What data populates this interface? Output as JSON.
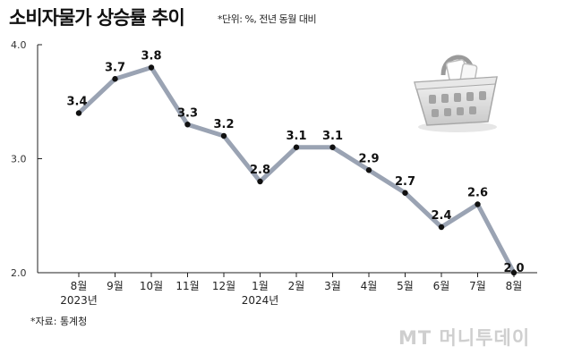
{
  "title": "소비자물가 상승률 추이",
  "unit_note": "*단위: %, 전년 동월 대비",
  "source": "*자료: 통계청",
  "watermark": "MT 머니투데이",
  "chart_data": {
    "type": "line",
    "title": "소비자물가 상승률 추이",
    "xlabel": "",
    "ylabel": "%",
    "ylim": [
      2.0,
      4.0
    ],
    "yticks": [
      "2.0",
      "3.0",
      "4.0"
    ],
    "grid": false,
    "categories": [
      "8월",
      "9월",
      "10월",
      "11월",
      "12월",
      "1월",
      "2월",
      "3월",
      "4월",
      "5월",
      "6월",
      "7월",
      "8월"
    ],
    "year_labels": [
      {
        "index": 0,
        "label": "2023년"
      },
      {
        "index": 5,
        "label": "2024년"
      }
    ],
    "series": [
      {
        "name": "소비자물가 상승률",
        "color": "#9aa3b3",
        "values": [
          3.4,
          3.7,
          3.8,
          3.3,
          3.2,
          2.8,
          3.1,
          3.1,
          2.9,
          2.7,
          2.4,
          2.6,
          2.0
        ],
        "labels": [
          "3.4",
          "3.7",
          "3.8",
          "3.3",
          "3.2",
          "2.8",
          "3.1",
          "3.1",
          "2.9",
          "2.7",
          "2.4",
          "2.6",
          "2.0"
        ]
      }
    ]
  }
}
